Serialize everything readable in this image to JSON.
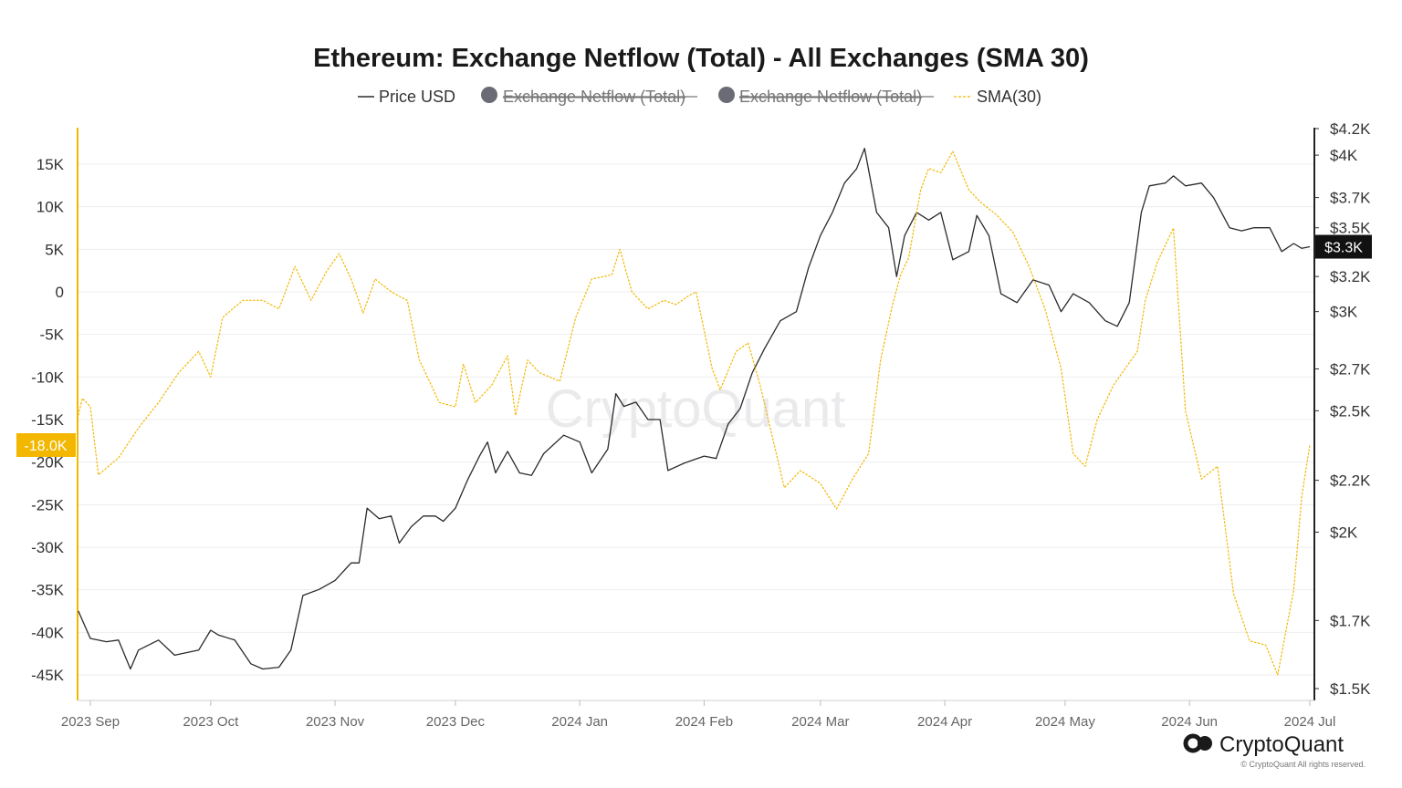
{
  "colors": {
    "price": "#2a2a2a",
    "sma": "#f3b700",
    "netflow": "#6b6b76",
    "grid": "#eeeeee",
    "sma_badge": "#f3b700",
    "price_badge": "#111111"
  },
  "legend": [
    {
      "label": "Price USD",
      "marker": "line",
      "color": "#2a2a2a",
      "hidden": false
    },
    {
      "label": "Exchange Netflow (Total)",
      "marker": "circle",
      "color": "#6b6b76",
      "hidden": true
    },
    {
      "label": "Exchange Netflow (Total)",
      "marker": "circle",
      "color": "#6b6b76",
      "hidden": true
    },
    {
      "label": "SMA(30)",
      "marker": "dashed-line",
      "color": "#f3b700",
      "hidden": false
    }
  ],
  "watermark": "CryptoQuant",
  "brand": {
    "name": "CryptoQuant",
    "copyright": "© CryptoQuant All rights reserved."
  },
  "chart_data": {
    "type": "line",
    "title": "Ethereum: Exchange Netflow (Total) - All Exchanges (SMA 30)",
    "x_ticks": [
      "2023 Sep",
      "2023 Oct",
      "2023 Nov",
      "2023 Dec",
      "2024 Jan",
      "2024 Feb",
      "2024 Mar",
      "2024 Apr",
      "2024 May",
      "2024 Jun",
      "2024 Jul"
    ],
    "x_range": [
      "2023-08-29",
      "2024-07-01"
    ],
    "left_axis": {
      "ticks": [
        "15K",
        "10K",
        "5K",
        "0",
        "-5K",
        "-10K",
        "-15K",
        "-20K",
        "-25K",
        "-30K",
        "-35K",
        "-40K",
        "-45K"
      ],
      "ylim": [
        -47500,
        19500
      ]
    },
    "right_axis": {
      "scale": "log",
      "ticks": [
        "$4.2K",
        "$4K",
        "$3.7K",
        "$3.5K",
        "$3.2K",
        "$3K",
        "$2.7K",
        "$2.5K",
        "$2.2K",
        "$2K",
        "$1.7K",
        "$1.5K"
      ],
      "ylim": [
        1470,
        4200
      ]
    },
    "current_labels": {
      "sma": "-18.0K",
      "price": "$3.3K"
    },
    "series": [
      {
        "name": "Price USD",
        "axis": "right",
        "points": [
          [
            "2023-08-29",
            1730
          ],
          [
            "2023-09-01",
            1645
          ],
          [
            "2023-09-05",
            1635
          ],
          [
            "2023-09-08",
            1640
          ],
          [
            "2023-09-11",
            1555
          ],
          [
            "2023-09-13",
            1610
          ],
          [
            "2023-09-18",
            1640
          ],
          [
            "2023-09-22",
            1595
          ],
          [
            "2023-09-28",
            1610
          ],
          [
            "2023-10-01",
            1670
          ],
          [
            "2023-10-03",
            1655
          ],
          [
            "2023-10-07",
            1640
          ],
          [
            "2023-10-11",
            1570
          ],
          [
            "2023-10-14",
            1555
          ],
          [
            "2023-10-18",
            1560
          ],
          [
            "2023-10-21",
            1610
          ],
          [
            "2023-10-24",
            1780
          ],
          [
            "2023-10-28",
            1800
          ],
          [
            "2023-11-01",
            1830
          ],
          [
            "2023-11-05",
            1890
          ],
          [
            "2023-11-07",
            1890
          ],
          [
            "2023-11-09",
            2090
          ],
          [
            "2023-11-12",
            2050
          ],
          [
            "2023-11-15",
            2060
          ],
          [
            "2023-11-17",
            1960
          ],
          [
            "2023-11-20",
            2020
          ],
          [
            "2023-11-23",
            2060
          ],
          [
            "2023-11-26",
            2060
          ],
          [
            "2023-11-28",
            2040
          ],
          [
            "2023-12-01",
            2090
          ],
          [
            "2023-12-04",
            2200
          ],
          [
            "2023-12-07",
            2300
          ],
          [
            "2023-12-09",
            2360
          ],
          [
            "2023-12-11",
            2230
          ],
          [
            "2023-12-14",
            2320
          ],
          [
            "2023-12-17",
            2230
          ],
          [
            "2023-12-20",
            2220
          ],
          [
            "2023-12-23",
            2310
          ],
          [
            "2023-12-28",
            2390
          ],
          [
            "2024-01-01",
            2360
          ],
          [
            "2024-01-04",
            2230
          ],
          [
            "2024-01-08",
            2330
          ],
          [
            "2024-01-10",
            2580
          ],
          [
            "2024-01-12",
            2520
          ],
          [
            "2024-01-15",
            2540
          ],
          [
            "2024-01-18",
            2460
          ],
          [
            "2024-01-21",
            2460
          ],
          [
            "2024-01-23",
            2240
          ],
          [
            "2024-01-27",
            2270
          ],
          [
            "2024-02-01",
            2300
          ],
          [
            "2024-02-04",
            2290
          ],
          [
            "2024-02-07",
            2440
          ],
          [
            "2024-02-10",
            2510
          ],
          [
            "2024-02-13",
            2680
          ],
          [
            "2024-02-16",
            2800
          ],
          [
            "2024-02-20",
            2950
          ],
          [
            "2024-02-24",
            3000
          ],
          [
            "2024-02-27",
            3250
          ],
          [
            "2024-03-01",
            3450
          ],
          [
            "2024-03-04",
            3600
          ],
          [
            "2024-03-07",
            3800
          ],
          [
            "2024-03-10",
            3900
          ],
          [
            "2024-03-12",
            4050
          ],
          [
            "2024-03-15",
            3600
          ],
          [
            "2024-03-18",
            3500
          ],
          [
            "2024-03-20",
            3200
          ],
          [
            "2024-03-22",
            3450
          ],
          [
            "2024-03-25",
            3600
          ],
          [
            "2024-03-28",
            3550
          ],
          [
            "2024-03-31",
            3600
          ],
          [
            "2024-04-03",
            3300
          ],
          [
            "2024-04-07",
            3350
          ],
          [
            "2024-04-09",
            3580
          ],
          [
            "2024-04-12",
            3450
          ],
          [
            "2024-04-15",
            3100
          ],
          [
            "2024-04-19",
            3050
          ],
          [
            "2024-04-23",
            3180
          ],
          [
            "2024-04-27",
            3150
          ],
          [
            "2024-04-30",
            3000
          ],
          [
            "2024-05-03",
            3100
          ],
          [
            "2024-05-07",
            3050
          ],
          [
            "2024-05-11",
            2950
          ],
          [
            "2024-05-14",
            2920
          ],
          [
            "2024-05-17",
            3050
          ],
          [
            "2024-05-20",
            3600
          ],
          [
            "2024-05-22",
            3780
          ],
          [
            "2024-05-26",
            3800
          ],
          [
            "2024-05-28",
            3850
          ],
          [
            "2024-05-31",
            3780
          ],
          [
            "2024-06-04",
            3800
          ],
          [
            "2024-06-07",
            3700
          ],
          [
            "2024-06-11",
            3500
          ],
          [
            "2024-06-14",
            3480
          ],
          [
            "2024-06-17",
            3500
          ],
          [
            "2024-06-21",
            3500
          ],
          [
            "2024-06-24",
            3350
          ],
          [
            "2024-06-27",
            3400
          ],
          [
            "2024-06-29",
            3370
          ],
          [
            "2024-07-01",
            3380
          ]
        ]
      },
      {
        "name": "SMA(30)",
        "axis": "left",
        "style": "dashed",
        "points": [
          [
            "2023-08-29",
            -14500
          ],
          [
            "2023-08-30",
            -12500
          ],
          [
            "2023-09-01",
            -13500
          ],
          [
            "2023-09-03",
            -21500
          ],
          [
            "2023-09-08",
            -19500
          ],
          [
            "2023-09-13",
            -16000
          ],
          [
            "2023-09-18",
            -13000
          ],
          [
            "2023-09-23",
            -9500
          ],
          [
            "2023-09-28",
            -7000
          ],
          [
            "2023-10-01",
            -10000
          ],
          [
            "2023-10-04",
            -3000
          ],
          [
            "2023-10-09",
            -1000
          ],
          [
            "2023-10-14",
            -1000
          ],
          [
            "2023-10-18",
            -2000
          ],
          [
            "2023-10-22",
            3000
          ],
          [
            "2023-10-26",
            -1000
          ],
          [
            "2023-10-30",
            2500
          ],
          [
            "2023-11-02",
            4500
          ],
          [
            "2023-11-05",
            1500
          ],
          [
            "2023-11-08",
            -2500
          ],
          [
            "2023-11-11",
            1500
          ],
          [
            "2023-11-15",
            0
          ],
          [
            "2023-11-19",
            -1000
          ],
          [
            "2023-11-22",
            -8000
          ],
          [
            "2023-11-25",
            -11000
          ],
          [
            "2023-11-27",
            -13000
          ],
          [
            "2023-12-01",
            -13500
          ],
          [
            "2023-12-03",
            -8500
          ],
          [
            "2023-12-06",
            -13000
          ],
          [
            "2023-12-10",
            -11000
          ],
          [
            "2023-12-14",
            -7500
          ],
          [
            "2023-12-16",
            -14500
          ],
          [
            "2023-12-19",
            -8000
          ],
          [
            "2023-12-22",
            -9500
          ],
          [
            "2023-12-27",
            -10500
          ],
          [
            "2023-12-31",
            -3000
          ],
          [
            "2024-01-04",
            1500
          ],
          [
            "2024-01-09",
            2000
          ],
          [
            "2024-01-11",
            5000
          ],
          [
            "2024-01-14",
            0
          ],
          [
            "2024-01-18",
            -2000
          ],
          [
            "2024-01-22",
            -1000
          ],
          [
            "2024-01-25",
            -1500
          ],
          [
            "2024-01-28",
            -500
          ],
          [
            "2024-01-30",
            0
          ],
          [
            "2024-02-03",
            -9000
          ],
          [
            "2024-02-05",
            -11500
          ],
          [
            "2024-02-09",
            -7000
          ],
          [
            "2024-02-12",
            -6000
          ],
          [
            "2024-02-15",
            -11000
          ],
          [
            "2024-02-18",
            -17000
          ],
          [
            "2024-02-21",
            -23000
          ],
          [
            "2024-02-25",
            -21000
          ],
          [
            "2024-03-01",
            -22500
          ],
          [
            "2024-03-05",
            -25500
          ],
          [
            "2024-03-09",
            -22000
          ],
          [
            "2024-03-13",
            -19000
          ],
          [
            "2024-03-16",
            -8000
          ],
          [
            "2024-03-19",
            -1500
          ],
          [
            "2024-03-21",
            2000
          ],
          [
            "2024-03-23",
            4000
          ],
          [
            "2024-03-26",
            12000
          ],
          [
            "2024-03-28",
            14500
          ],
          [
            "2024-03-31",
            14000
          ],
          [
            "2024-04-03",
            16500
          ],
          [
            "2024-04-07",
            12000
          ],
          [
            "2024-04-10",
            10500
          ],
          [
            "2024-04-14",
            9000
          ],
          [
            "2024-04-18",
            7000
          ],
          [
            "2024-04-22",
            3000
          ],
          [
            "2024-04-26",
            -2000
          ],
          [
            "2024-04-30",
            -9000
          ],
          [
            "2024-05-03",
            -19000
          ],
          [
            "2024-05-06",
            -20500
          ],
          [
            "2024-05-09",
            -15000
          ],
          [
            "2024-05-13",
            -11000
          ],
          [
            "2024-05-16",
            -9000
          ],
          [
            "2024-05-19",
            -7000
          ],
          [
            "2024-05-21",
            -1000
          ],
          [
            "2024-05-24",
            3500
          ],
          [
            "2024-05-28",
            7500
          ],
          [
            "2024-05-31",
            -14000
          ],
          [
            "2024-06-04",
            -22000
          ],
          [
            "2024-06-08",
            -20500
          ],
          [
            "2024-06-12",
            -35500
          ],
          [
            "2024-06-16",
            -41000
          ],
          [
            "2024-06-20",
            -41500
          ],
          [
            "2024-06-23",
            -45000
          ],
          [
            "2024-06-25",
            -40000
          ],
          [
            "2024-06-27",
            -35000
          ],
          [
            "2024-06-29",
            -24000
          ],
          [
            "2024-07-01",
            -18000
          ]
        ]
      }
    ]
  }
}
